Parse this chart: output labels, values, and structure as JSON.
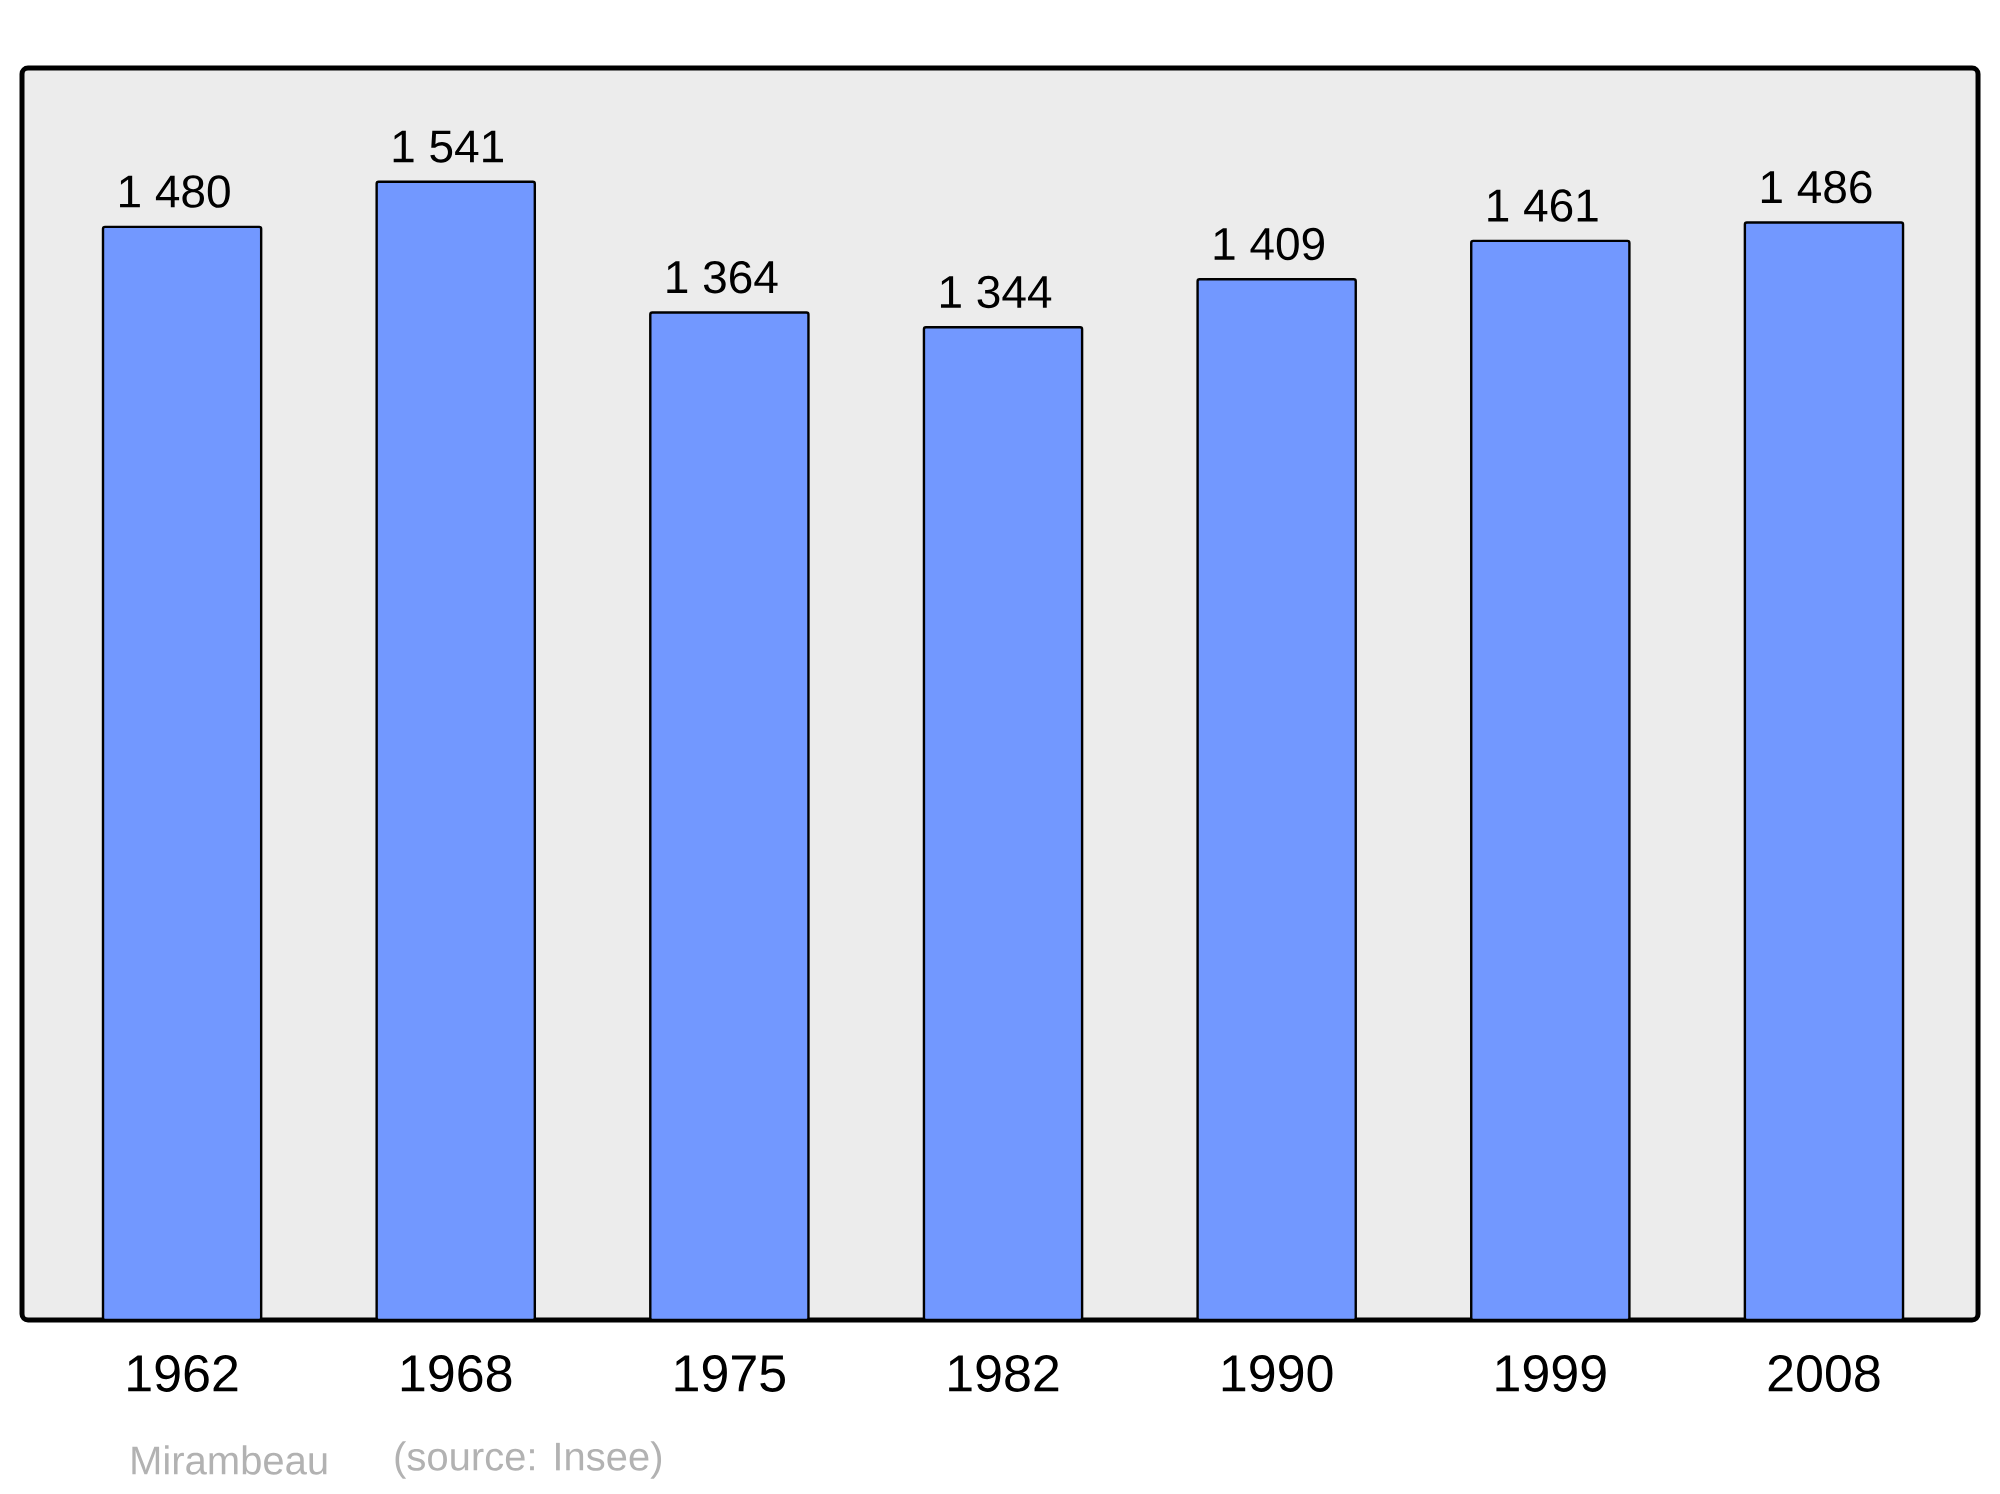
{
  "chart_data": {
    "type": "bar",
    "categories": [
      "1962",
      "1968",
      "1975",
      "1982",
      "1990",
      "1999",
      "2008"
    ],
    "values": [
      1480,
      1541,
      1364,
      1344,
      1409,
      1461,
      1486
    ],
    "value_labels": [
      "1 480",
      "1 541",
      "1 364",
      "1 344",
      "1 409",
      "1 461",
      "1 486"
    ],
    "color": "#7298ff",
    "annotations": [
      "Mirambeau",
      "(source: Insee)"
    ]
  }
}
